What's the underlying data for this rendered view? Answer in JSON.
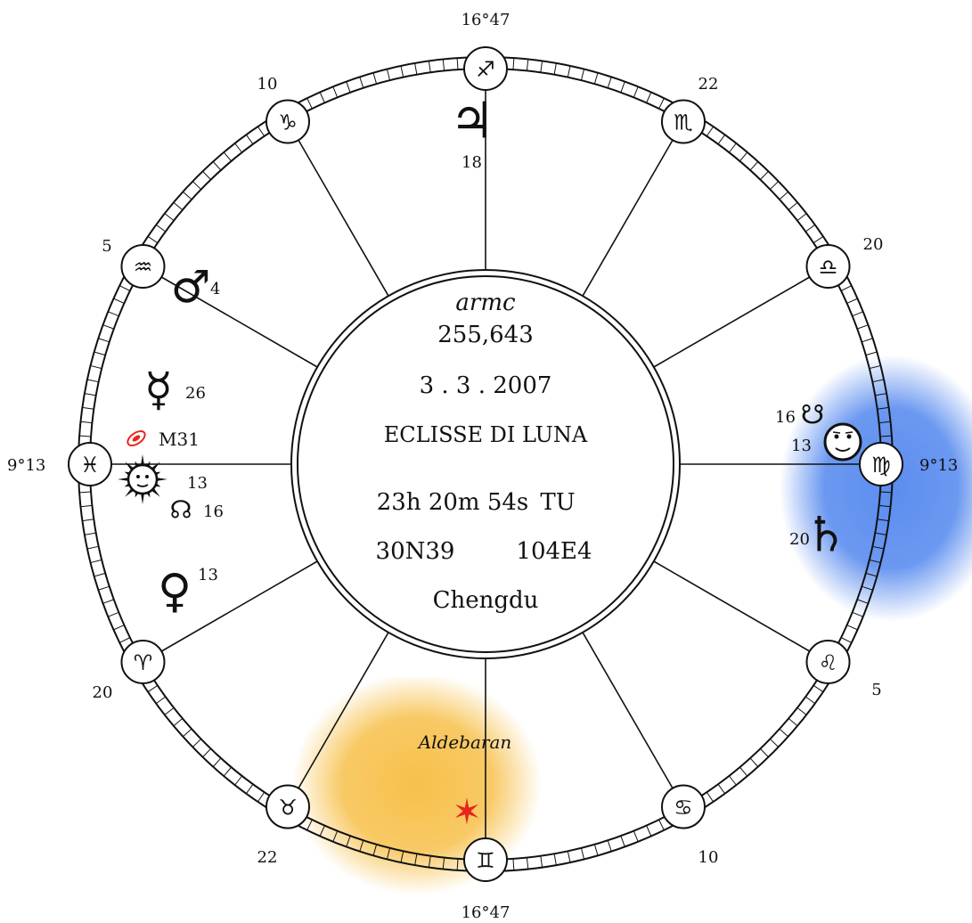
{
  "center": {
    "label": "armc",
    "armc_value": "255,643",
    "date": "3 . 3 . 2007",
    "event": "ECLISSE DI LUNA",
    "time": "23h 20m 54s",
    "time_zone": "TU",
    "latitude": "30N39",
    "longitude": "104E4",
    "place": "Chengdu"
  },
  "axes": {
    "mc_degree": "16°47",
    "ic_degree": "16°47",
    "asc_degree": "9°13",
    "dsc_degree": "9°13"
  },
  "signs": [
    {
      "name": "sagittarius-icon",
      "glyph": "♐",
      "cusp_label": "16°47"
    },
    {
      "name": "scorpio-icon",
      "glyph": "♏",
      "cusp_label": "22"
    },
    {
      "name": "libra-icon",
      "glyph": "♎",
      "cusp_label": "20"
    },
    {
      "name": "virgo-icon",
      "glyph": "♍",
      "cusp_label": "9°13"
    },
    {
      "name": "leo-icon",
      "glyph": "♌",
      "cusp_label": "5"
    },
    {
      "name": "cancer-icon",
      "glyph": "♋",
      "cusp_label": "10"
    },
    {
      "name": "gemini-icon",
      "glyph": "♊",
      "cusp_label": "16°47"
    },
    {
      "name": "taurus-icon",
      "glyph": "♉",
      "cusp_label": "22"
    },
    {
      "name": "aries-icon",
      "glyph": "♈",
      "cusp_label": "20"
    },
    {
      "name": "pisces-icon",
      "glyph": "♓",
      "cusp_label": "9°13"
    },
    {
      "name": "aquarius-icon",
      "glyph": "♒",
      "cusp_label": "5"
    },
    {
      "name": "capricorn-icon",
      "glyph": "♑",
      "cusp_label": "10"
    }
  ],
  "planets": {
    "jupiter": {
      "glyph": "♃",
      "degree": "18"
    },
    "mars": {
      "glyph": "♂",
      "degree": "4"
    },
    "mercury": {
      "glyph": "☿",
      "degree": "26"
    },
    "m31": {
      "label": "M31"
    },
    "sun": {
      "glyph": "☉",
      "degree": "13"
    },
    "north_node": {
      "glyph": "☊",
      "degree": "16"
    },
    "venus": {
      "glyph": "♀",
      "degree": "13"
    },
    "south_node": {
      "glyph": "☋",
      "degree": "16"
    },
    "moon": {
      "glyph": "☽",
      "degree": "13"
    },
    "saturn": {
      "glyph": "♄",
      "degree": "20"
    },
    "aldebaran": {
      "label": "Aldebaran",
      "glyph": "✶"
    }
  },
  "colors": {
    "ink": "#111111",
    "blue_glow": "#5b8def",
    "gold_glow": "#f7c04a",
    "star_red": "#e8241c"
  }
}
